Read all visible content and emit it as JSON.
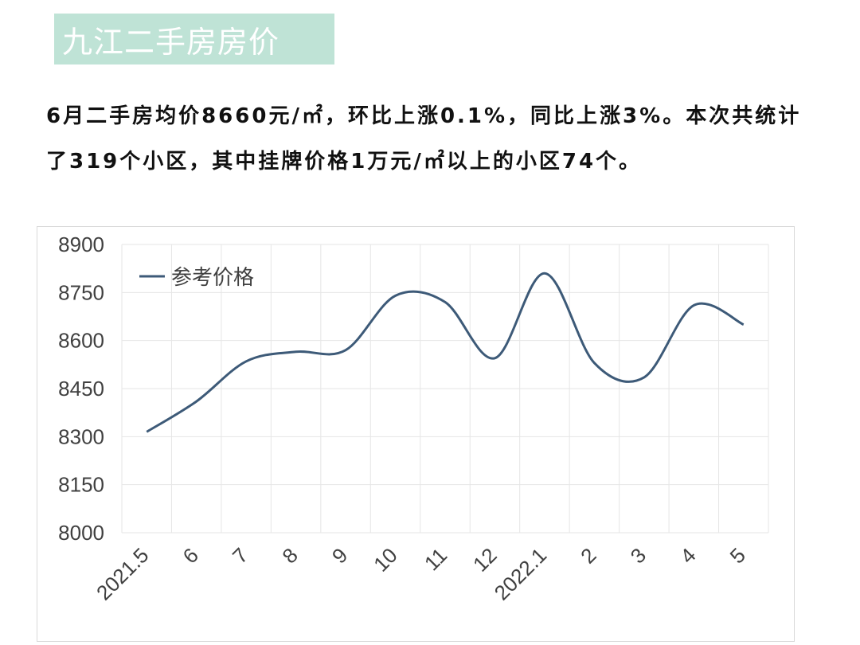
{
  "header": {
    "title": "九江二手房房价"
  },
  "summary": {
    "text": "6月二手房均价8660元/㎡，环比上涨0.1%，同比上涨3%。本次共统计了319个小区，其中挂牌价格1万元/㎡以上的小区74个。"
  },
  "colors": {
    "banner": "#bfe3d6",
    "line": "#3d5a78",
    "grid": "#e6e6e6"
  },
  "chart_data": {
    "type": "line",
    "categories": [
      "2021.5",
      "6",
      "7",
      "8",
      "9",
      "10",
      "11",
      "12",
      "2022.1",
      "2",
      "3",
      "4",
      "5"
    ],
    "series": [
      {
        "name": "参考价格",
        "values": [
          8315,
          8410,
          8535,
          8565,
          8570,
          8740,
          8720,
          8545,
          8810,
          8530,
          8485,
          8710,
          8650
        ]
      }
    ],
    "ylim": [
      8000,
      8900
    ],
    "yticks": [
      8000,
      8150,
      8300,
      8450,
      8600,
      8750,
      8900
    ],
    "grid": true,
    "legend": "top-left"
  }
}
